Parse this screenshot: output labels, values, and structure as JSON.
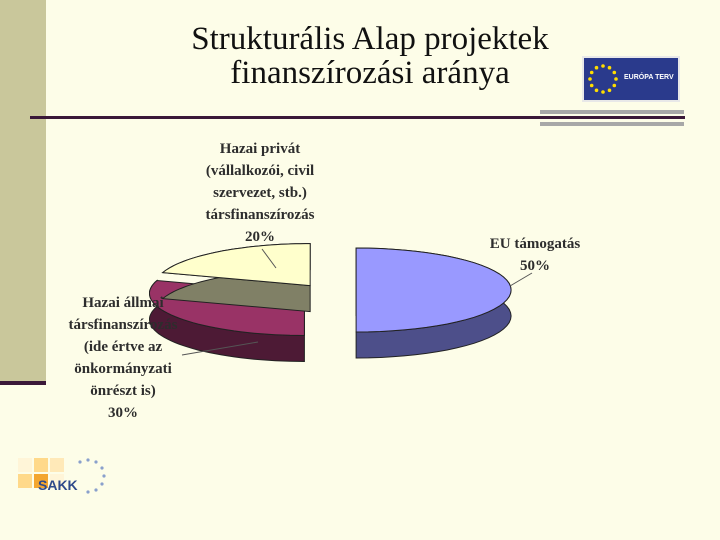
{
  "slide": {
    "title_line1": "Strukturális Alap projektek",
    "title_line2": "finanszírozási aránya",
    "eu_logo_text": "EURÓPA TERV",
    "sakk_logo_text": "SAKK"
  },
  "colors": {
    "eu_slice_top": "#9999ff",
    "eu_slice_side": "#4d4f8a",
    "state_slice_top": "#993366",
    "state_slice_side": "#4d1a35",
    "private_slice_top": "#ffffcc",
    "private_slice_side": "#808066",
    "background": "#fdfde8",
    "accent_dark": "#3a1838"
  },
  "chart_data": {
    "type": "pie",
    "title": "Strukturális Alap projektek finanszírozási aránya",
    "slices": [
      {
        "label_lines": [
          "EU támogatás"
        ],
        "percent_label": "50%",
        "value": 50
      },
      {
        "label_lines": [
          "Hazai állmai",
          "társfinanszírozás",
          "(ide értve az",
          "önkormányzati",
          "önrészt is)"
        ],
        "percent_label": "30%",
        "value": 30
      },
      {
        "label_lines": [
          "Hazai privát",
          "(vállalkozói, civil",
          "szervezet, stb.)",
          "társfinanszírozás"
        ],
        "percent_label": "20%",
        "value": 20
      }
    ],
    "exploded": true,
    "three_d": true,
    "legend": "none"
  }
}
